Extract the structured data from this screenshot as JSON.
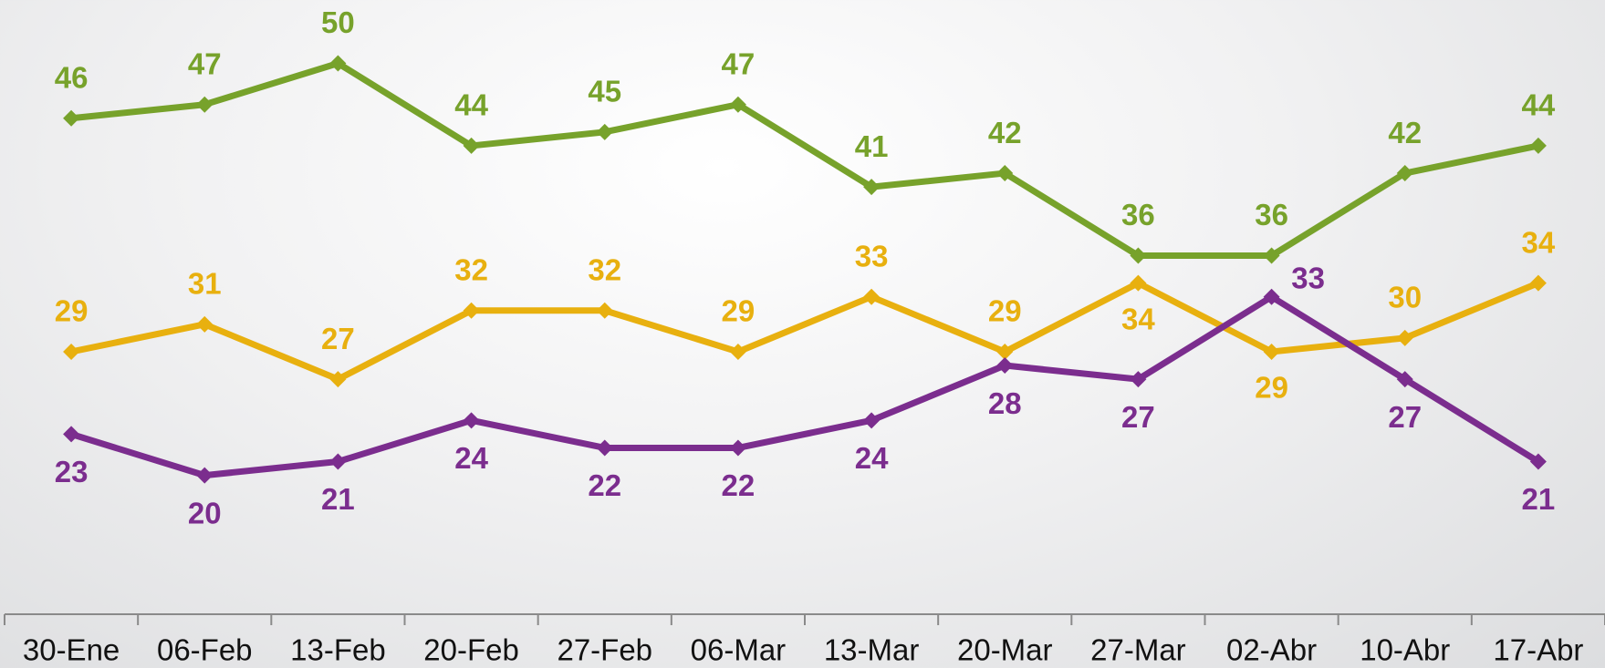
{
  "chart_data": {
    "type": "line",
    "categories": [
      "30-Ene",
      "06-Feb",
      "13-Feb",
      "20-Feb",
      "27-Feb",
      "06-Mar",
      "13-Mar",
      "20-Mar",
      "27-Mar",
      "02-Abr",
      "10-Abr",
      "17-Abr"
    ],
    "series": [
      {
        "color": "#77a22b",
        "values": [
          46,
          47,
          50,
          44,
          45,
          47,
          41,
          42,
          36,
          36,
          42,
          44
        ]
      },
      {
        "color": "#e8b00f",
        "values": [
          29,
          31,
          27,
          32,
          32,
          29,
          33,
          29,
          34,
          29,
          30,
          34
        ]
      },
      {
        "color": "#7b2d8e",
        "values": [
          23,
          20,
          21,
          24,
          22,
          22,
          24,
          28,
          27,
          33,
          27,
          21
        ]
      }
    ]
  }
}
